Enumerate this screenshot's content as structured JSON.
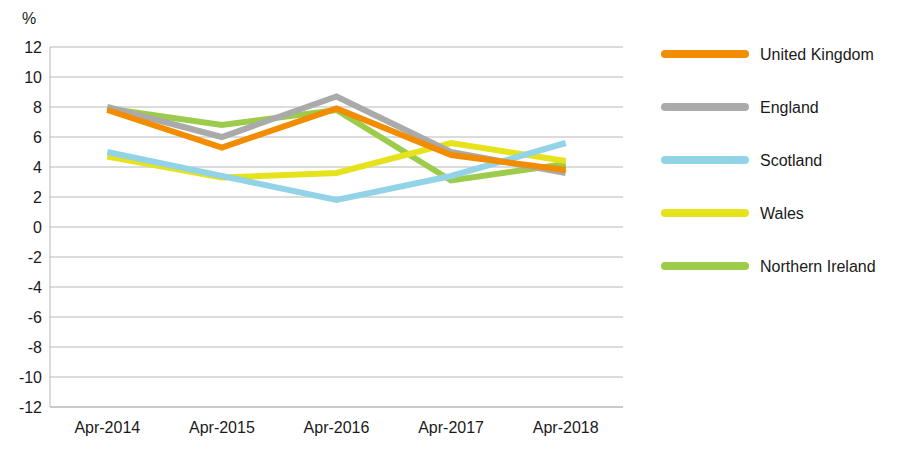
{
  "chart_data": {
    "type": "line",
    "y_label": "%",
    "categories": [
      "Apr-2014",
      "Apr-2015",
      "Apr-2016",
      "Apr-2017",
      "Apr-2018"
    ],
    "series": [
      {
        "name": "United Kingdom",
        "color": "#f28c00",
        "values": [
          7.8,
          5.3,
          7.9,
          4.8,
          3.8
        ]
      },
      {
        "name": "England",
        "color": "#aaaaaa",
        "values": [
          8.0,
          6.0,
          8.7,
          5.0,
          3.6
        ]
      },
      {
        "name": "Scotland",
        "color": "#92d3e8",
        "values": [
          5.0,
          3.4,
          1.8,
          3.4,
          5.6
        ]
      },
      {
        "name": "Wales",
        "color": "#e6e21c",
        "values": [
          4.7,
          3.3,
          3.6,
          5.6,
          4.4
        ]
      },
      {
        "name": "Northern Ireland",
        "color": "#9dcb4a",
        "values": [
          7.9,
          6.8,
          7.8,
          3.1,
          4.2
        ]
      }
    ],
    "ylim": [
      -12,
      12
    ],
    "yticks": [
      -12,
      -10,
      -8,
      -6,
      -4,
      -2,
      0,
      2,
      4,
      6,
      8,
      10,
      12
    ],
    "grid": true,
    "legend": "right"
  }
}
